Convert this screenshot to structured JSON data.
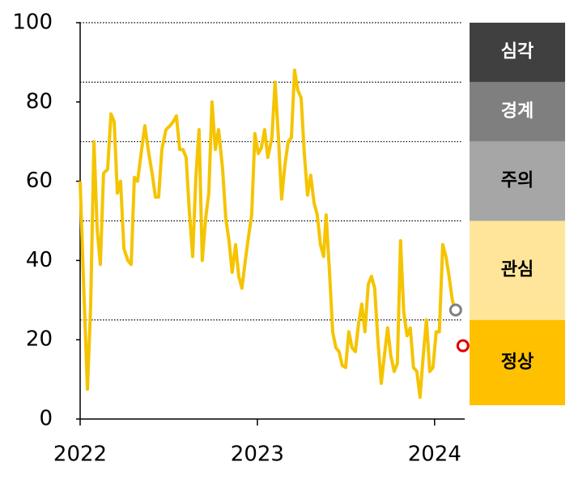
{
  "chart_data": {
    "type": "line",
    "x": [
      2022.0,
      2022.018,
      2022.041,
      2022.059,
      2022.078,
      2022.096,
      2022.114,
      2022.132,
      2022.155,
      2022.174,
      2022.192,
      2022.21,
      2022.228,
      2022.247,
      2022.269,
      2022.288,
      2022.306,
      2022.324,
      2022.347,
      2022.365,
      2022.384,
      2022.406,
      2022.425,
      2022.443,
      2022.461,
      2022.484,
      2022.507,
      2022.525,
      2022.543,
      2022.562,
      2022.58,
      2022.598,
      2022.616,
      2022.635,
      2022.653,
      2022.671,
      2022.689,
      2022.708,
      2022.726,
      2022.744,
      2022.763,
      2022.781,
      2022.804,
      2022.822,
      2022.84,
      2022.858,
      2022.877,
      2022.895,
      2022.913,
      2022.932,
      2022.95,
      2022.968,
      2022.986,
      2023.005,
      2023.023,
      2023.041,
      2023.059,
      2023.082,
      2023.1,
      2023.119,
      2023.137,
      2023.155,
      2023.174,
      2023.192,
      2023.21,
      2023.228,
      2023.247,
      2023.265,
      2023.283,
      2023.301,
      2023.32,
      2023.338,
      2023.356,
      2023.374,
      2023.388,
      2023.406,
      2023.425,
      2023.443,
      2023.461,
      2023.479,
      2023.498,
      2023.516,
      2023.534,
      2023.553,
      2023.571,
      2023.589,
      2023.607,
      2023.626,
      2023.644,
      2023.662,
      2023.68,
      2023.699,
      2023.717,
      2023.735,
      2023.753,
      2023.772,
      2023.79,
      2023.808,
      2023.826,
      2023.845,
      2023.863,
      2023.881,
      2023.9,
      2023.918,
      2023.936,
      2023.954,
      2023.973,
      2023.991,
      2024.009,
      2024.027,
      2024.046,
      2024.064,
      2024.082,
      2024.1,
      2024.119
    ],
    "series": [
      {
        "color": "#f5c400",
        "values": [
          60,
          36,
          7.5,
          28,
          70,
          48,
          39,
          62,
          63,
          77,
          75,
          57,
          60,
          43,
          40,
          39,
          61,
          60,
          68,
          74,
          68,
          62,
          56,
          56,
          68,
          73,
          74,
          75,
          76.5,
          68,
          68,
          66,
          52.5,
          41,
          61,
          73,
          40,
          50.5,
          57,
          80,
          68,
          73,
          63,
          50.5,
          45,
          37,
          44,
          36,
          33,
          40,
          46,
          51.5,
          72,
          67,
          68.5,
          73,
          66,
          71,
          85,
          71,
          55.5,
          64,
          70,
          71,
          88,
          83,
          81,
          67,
          56.5,
          61.5,
          54.5,
          51.5,
          44,
          41,
          51.5,
          38,
          22,
          18,
          17,
          13.5,
          13,
          22,
          18,
          17,
          24,
          29,
          22,
          34,
          36,
          33,
          20,
          9,
          16,
          23,
          16,
          12,
          14,
          45,
          27,
          21,
          23,
          13,
          12,
          5.5,
          16,
          25,
          12,
          13,
          22,
          22,
          44,
          41,
          36,
          30,
          27
        ]
      }
    ],
    "markers": [
      {
        "x": 2024.119,
        "y": 27.5,
        "color": "#808080"
      },
      {
        "x": 2024.16,
        "y": 18.5,
        "color": "#e00000"
      }
    ],
    "bands": [
      {
        "label": "심각",
        "from": 85,
        "to": 100,
        "color": "#404040",
        "text_color": "#ffffff"
      },
      {
        "label": "경계",
        "from": 70,
        "to": 85,
        "color": "#7f7f7f",
        "text_color": "#ffffff"
      },
      {
        "label": "주의",
        "from": 50,
        "to": 70,
        "color": "#a6a6a6",
        "text_color": "#000000"
      },
      {
        "label": "관심",
        "from": 25,
        "to": 50,
        "color": "#ffe599",
        "text_color": "#000000"
      },
      {
        "label": "정상",
        "from": 0,
        "to": 25,
        "color": "#ffc000",
        "text_color": "#000000"
      }
    ],
    "xlim": [
      2022,
      2024.17
    ],
    "xticks": [
      2022,
      2023,
      2024
    ],
    "ylim": [
      0,
      100
    ],
    "yticks": [
      0,
      20,
      40,
      60,
      80,
      100
    ]
  }
}
